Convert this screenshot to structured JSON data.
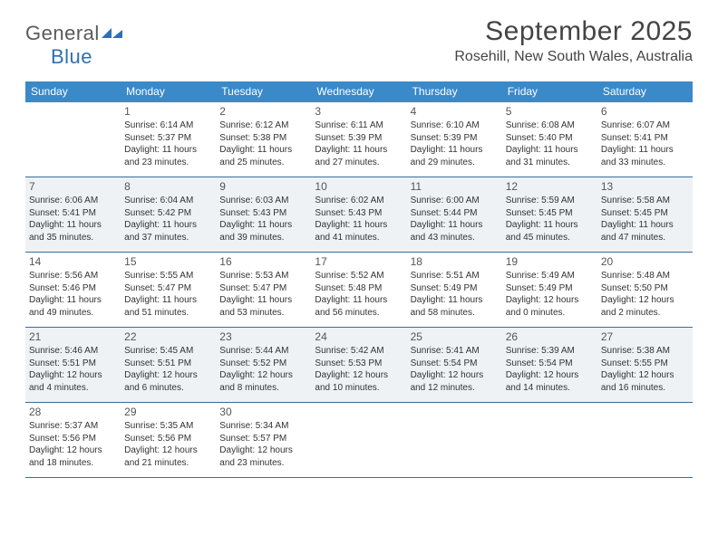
{
  "logo": {
    "text1": "General",
    "text2": "Blue",
    "mark_color": "#2f6fb3"
  },
  "title": "September 2025",
  "subtitle": "Rosehill, New South Wales, Australia",
  "colors": {
    "header_bg": "#3a89c9",
    "header_fg": "#ffffff",
    "row_border": "#3a6e9a",
    "shaded_bg": "#eef2f5",
    "text": "#333333",
    "title_color": "#444444"
  },
  "weekdays": [
    "Sunday",
    "Monday",
    "Tuesday",
    "Wednesday",
    "Thursday",
    "Friday",
    "Saturday"
  ],
  "start_offset": 1,
  "days": [
    {
      "n": 1,
      "sunrise": "6:14 AM",
      "sunset": "5:37 PM",
      "daylight": "11 hours and 23 minutes."
    },
    {
      "n": 2,
      "sunrise": "6:12 AM",
      "sunset": "5:38 PM",
      "daylight": "11 hours and 25 minutes."
    },
    {
      "n": 3,
      "sunrise": "6:11 AM",
      "sunset": "5:39 PM",
      "daylight": "11 hours and 27 minutes."
    },
    {
      "n": 4,
      "sunrise": "6:10 AM",
      "sunset": "5:39 PM",
      "daylight": "11 hours and 29 minutes."
    },
    {
      "n": 5,
      "sunrise": "6:08 AM",
      "sunset": "5:40 PM",
      "daylight": "11 hours and 31 minutes."
    },
    {
      "n": 6,
      "sunrise": "6:07 AM",
      "sunset": "5:41 PM",
      "daylight": "11 hours and 33 minutes."
    },
    {
      "n": 7,
      "sunrise": "6:06 AM",
      "sunset": "5:41 PM",
      "daylight": "11 hours and 35 minutes."
    },
    {
      "n": 8,
      "sunrise": "6:04 AM",
      "sunset": "5:42 PM",
      "daylight": "11 hours and 37 minutes."
    },
    {
      "n": 9,
      "sunrise": "6:03 AM",
      "sunset": "5:43 PM",
      "daylight": "11 hours and 39 minutes."
    },
    {
      "n": 10,
      "sunrise": "6:02 AM",
      "sunset": "5:43 PM",
      "daylight": "11 hours and 41 minutes."
    },
    {
      "n": 11,
      "sunrise": "6:00 AM",
      "sunset": "5:44 PM",
      "daylight": "11 hours and 43 minutes."
    },
    {
      "n": 12,
      "sunrise": "5:59 AM",
      "sunset": "5:45 PM",
      "daylight": "11 hours and 45 minutes."
    },
    {
      "n": 13,
      "sunrise": "5:58 AM",
      "sunset": "5:45 PM",
      "daylight": "11 hours and 47 minutes."
    },
    {
      "n": 14,
      "sunrise": "5:56 AM",
      "sunset": "5:46 PM",
      "daylight": "11 hours and 49 minutes."
    },
    {
      "n": 15,
      "sunrise": "5:55 AM",
      "sunset": "5:47 PM",
      "daylight": "11 hours and 51 minutes."
    },
    {
      "n": 16,
      "sunrise": "5:53 AM",
      "sunset": "5:47 PM",
      "daylight": "11 hours and 53 minutes."
    },
    {
      "n": 17,
      "sunrise": "5:52 AM",
      "sunset": "5:48 PM",
      "daylight": "11 hours and 56 minutes."
    },
    {
      "n": 18,
      "sunrise": "5:51 AM",
      "sunset": "5:49 PM",
      "daylight": "11 hours and 58 minutes."
    },
    {
      "n": 19,
      "sunrise": "5:49 AM",
      "sunset": "5:49 PM",
      "daylight": "12 hours and 0 minutes."
    },
    {
      "n": 20,
      "sunrise": "5:48 AM",
      "sunset": "5:50 PM",
      "daylight": "12 hours and 2 minutes."
    },
    {
      "n": 21,
      "sunrise": "5:46 AM",
      "sunset": "5:51 PM",
      "daylight": "12 hours and 4 minutes."
    },
    {
      "n": 22,
      "sunrise": "5:45 AM",
      "sunset": "5:51 PM",
      "daylight": "12 hours and 6 minutes."
    },
    {
      "n": 23,
      "sunrise": "5:44 AM",
      "sunset": "5:52 PM",
      "daylight": "12 hours and 8 minutes."
    },
    {
      "n": 24,
      "sunrise": "5:42 AM",
      "sunset": "5:53 PM",
      "daylight": "12 hours and 10 minutes."
    },
    {
      "n": 25,
      "sunrise": "5:41 AM",
      "sunset": "5:54 PM",
      "daylight": "12 hours and 12 minutes."
    },
    {
      "n": 26,
      "sunrise": "5:39 AM",
      "sunset": "5:54 PM",
      "daylight": "12 hours and 14 minutes."
    },
    {
      "n": 27,
      "sunrise": "5:38 AM",
      "sunset": "5:55 PM",
      "daylight": "12 hours and 16 minutes."
    },
    {
      "n": 28,
      "sunrise": "5:37 AM",
      "sunset": "5:56 PM",
      "daylight": "12 hours and 18 minutes."
    },
    {
      "n": 29,
      "sunrise": "5:35 AM",
      "sunset": "5:56 PM",
      "daylight": "12 hours and 21 minutes."
    },
    {
      "n": 30,
      "sunrise": "5:34 AM",
      "sunset": "5:57 PM",
      "daylight": "12 hours and 23 minutes."
    }
  ],
  "labels": {
    "sunrise": "Sunrise:",
    "sunset": "Sunset:",
    "daylight": "Daylight:"
  }
}
